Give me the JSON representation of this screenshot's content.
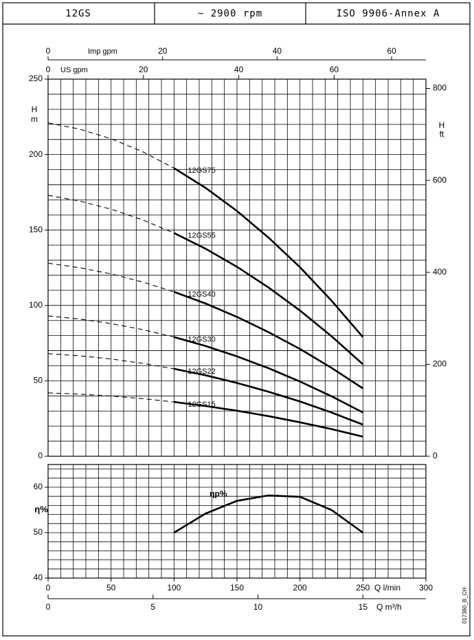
{
  "header": {
    "cells": [
      "12GS",
      "~ 2900 rpm",
      "ISO 9906-Annex A"
    ]
  },
  "footer_code": "017360_B_CH",
  "chart_data": [
    {
      "type": "line",
      "ylabel_lines": [
        "H",
        "m"
      ],
      "ylim": [
        0,
        250
      ],
      "yticks": [
        0,
        50,
        100,
        150,
        200,
        250
      ],
      "y2label_lines": [
        "H",
        "ft"
      ],
      "y2lim": [
        0,
        820.2
      ],
      "y2ticks": [
        0,
        200,
        400,
        600,
        800
      ],
      "xlim": [
        0,
        300
      ],
      "top_axes": [
        {
          "label": "Imp gpm",
          "xlim": [
            0,
            65.99
          ],
          "xticks": [
            0,
            20,
            40,
            60
          ]
        },
        {
          "label": "US gpm",
          "xlim": [
            0,
            79.25
          ],
          "xticks": [
            0,
            20,
            40,
            60
          ]
        }
      ],
      "dashed_xrange": [
        0,
        100
      ],
      "grid": true,
      "color": "#000000",
      "x": [
        0,
        25,
        50,
        75,
        100,
        125,
        150,
        175,
        200,
        225,
        250
      ],
      "series": [
        {
          "name": "12GS75",
          "values": [
            221,
            216.9,
            210.5,
            201.9,
            191,
            177.9,
            162.6,
            145.0,
            125.3,
            103.2,
            79
          ]
        },
        {
          "name": "12GS55",
          "values": [
            173,
            169.2,
            163.8,
            156.7,
            148,
            137.6,
            125.6,
            111.9,
            96.6,
            79.6,
            61
          ]
        },
        {
          "name": "12GS40",
          "values": [
            128,
            125.0,
            120.9,
            115.5,
            109,
            101.3,
            92.4,
            82.3,
            71.1,
            58.6,
            45
          ]
        },
        {
          "name": "12GS30",
          "values": [
            93,
            91.0,
            87.9,
            84.0,
            79,
            73.1,
            66.2,
            58.4,
            49.5,
            39.8,
            29
          ]
        },
        {
          "name": "12GS22",
          "values": [
            68,
            66.6,
            64.5,
            61.6,
            58,
            53.7,
            48.6,
            42.8,
            36.3,
            29.0,
            21
          ]
        },
        {
          "name": "12GS15",
          "values": [
            42,
            41.2,
            39.9,
            38.2,
            36,
            33.3,
            30.2,
            26.6,
            22.5,
            18.0,
            13
          ]
        }
      ]
    },
    {
      "type": "line",
      "ylabel": "η%",
      "ylim": [
        40,
        65
      ],
      "yticks": [
        40,
        50,
        60
      ],
      "xlim": [
        0,
        300
      ],
      "xticks": [
        0,
        50,
        100,
        150,
        200,
        250,
        300
      ],
      "xlabel": "Q l/min",
      "bottom_axis": {
        "label": "Q m³/h",
        "xlim": [
          0,
          18
        ],
        "xticks": [
          0,
          5,
          10,
          15
        ]
      },
      "grid": true,
      "color": "#000000",
      "x": [
        100,
        125,
        150,
        175,
        200,
        225,
        250
      ],
      "series": [
        {
          "name": "ηp%",
          "values": [
            50,
            54.2,
            57,
            58.2,
            57.9,
            55,
            50
          ]
        }
      ]
    }
  ]
}
